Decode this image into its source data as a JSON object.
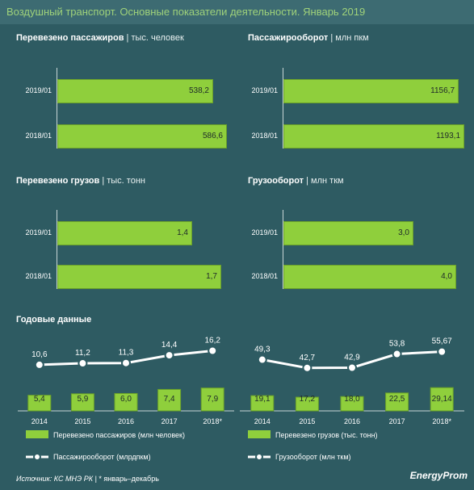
{
  "title": "Воздушный транспорт. Основные показатели деятельности.  Январь 2019",
  "panels": [
    {
      "title": "Перевезено пассажиров",
      "unit": "| тыс. человек",
      "categories": [
        "2019/01",
        "2018/01"
      ],
      "values": [
        "538,2",
        "586,6"
      ],
      "nums": [
        538.2,
        586.6
      ],
      "max": 600
    },
    {
      "title": "Пассажирооборот",
      "unit": "| млн пкм",
      "categories": [
        "2019/01",
        "2018/01"
      ],
      "values": [
        "1156,7",
        "1193,1"
      ],
      "nums": [
        1156.7,
        1193.1
      ],
      "max": 1200
    },
    {
      "title": "Перевезено грузов",
      "unit": "| тыс. тонн",
      "categories": [
        "2019/01",
        "2018/01"
      ],
      "values": [
        "1,4",
        "1,7"
      ],
      "nums": [
        1.4,
        1.7
      ],
      "max": 1.8
    },
    {
      "title": "Грузооборот",
      "unit": "| млн ткм",
      "categories": [
        "2019/01",
        "2018/01"
      ],
      "values": [
        "3,0",
        "4,0"
      ],
      "nums": [
        3.0,
        4.0
      ],
      "max": 4.2
    }
  ],
  "annual": {
    "title": "Годовые данные",
    "years": [
      "2014",
      "2015",
      "2016",
      "2017",
      "2018*"
    ],
    "left": {
      "bar_name": "Перевезено пассажиров (млн человек)",
      "bar_values": [
        "5,4",
        "5,9",
        "6,0",
        "7,4",
        "7,9"
      ],
      "bar_nums": [
        5.4,
        5.9,
        6.0,
        7.4,
        7.9
      ],
      "line_name": "Пассажирооборот (млрдпкм)",
      "line_values": [
        "10,6",
        "11,2",
        "11,3",
        "14,4",
        "16,2"
      ],
      "line_nums": [
        10.6,
        11.2,
        11.3,
        14.4,
        16.2
      ]
    },
    "right": {
      "bar_name": "Перевезено грузов (тыс. тонн)",
      "bar_values": [
        "19,1",
        "17,2",
        "18,0",
        "22,5",
        "29,14"
      ],
      "bar_nums": [
        19.1,
        17.2,
        18.0,
        22.5,
        29.14
      ],
      "line_name": "Грузооборот (млн ткм)",
      "line_values": [
        "49,3",
        "42,7",
        "42,9",
        "53,8",
        "55,67"
      ],
      "line_nums": [
        49.3,
        42.7,
        42.9,
        53.8,
        55.67
      ]
    }
  },
  "footer": {
    "source": "Источник: КС МНЭ РК",
    "note": "| * январь–декабрь",
    "logo": "EnergyProm"
  },
  "colors": {
    "bar": "#8fcf3c",
    "background": "#2e5b62",
    "title": "#9fd27a",
    "line": "#ffffff"
  },
  "chart_data": [
    {
      "type": "bar",
      "title": "Перевезено пассажиров",
      "xlabel": "",
      "ylabel": "тыс. человек",
      "categories": [
        "2019/01",
        "2018/01"
      ],
      "values": [
        538.2,
        586.6
      ]
    },
    {
      "type": "bar",
      "title": "Пассажирооборот",
      "xlabel": "",
      "ylabel": "млн пкм",
      "categories": [
        "2019/01",
        "2018/01"
      ],
      "values": [
        1156.7,
        1193.1
      ]
    },
    {
      "type": "bar",
      "title": "Перевезено грузов",
      "xlabel": "",
      "ylabel": "тыс. тонн",
      "categories": [
        "2019/01",
        "2018/01"
      ],
      "values": [
        1.4,
        1.7
      ]
    },
    {
      "type": "bar",
      "title": "Грузооборот",
      "xlabel": "",
      "ylabel": "млн ткм",
      "categories": [
        "2019/01",
        "2018/01"
      ],
      "values": [
        3.0,
        4.0
      ]
    },
    {
      "type": "bar",
      "title": "Годовые данные",
      "categories": [
        "2014",
        "2015",
        "2016",
        "2017",
        "2018*"
      ],
      "series": [
        {
          "name": "Перевезено пассажиров (млн человек)",
          "type": "bar",
          "values": [
            5.4,
            5.9,
            6.0,
            7.4,
            7.9
          ]
        },
        {
          "name": "Пассажирооборот (млрдпкм)",
          "type": "line",
          "values": [
            10.6,
            11.2,
            11.3,
            14.4,
            16.2
          ]
        }
      ]
    },
    {
      "type": "bar",
      "title": "",
      "categories": [
        "2014",
        "2015",
        "2016",
        "2017",
        "2018*"
      ],
      "series": [
        {
          "name": "Перевезено грузов (тыс. тонн)",
          "type": "bar",
          "values": [
            19.1,
            17.2,
            18.0,
            22.5,
            29.14
          ]
        },
        {
          "name": "Грузооборот (млн ткм)",
          "type": "line",
          "values": [
            49.3,
            42.7,
            42.9,
            53.8,
            55.67
          ]
        }
      ]
    }
  ]
}
